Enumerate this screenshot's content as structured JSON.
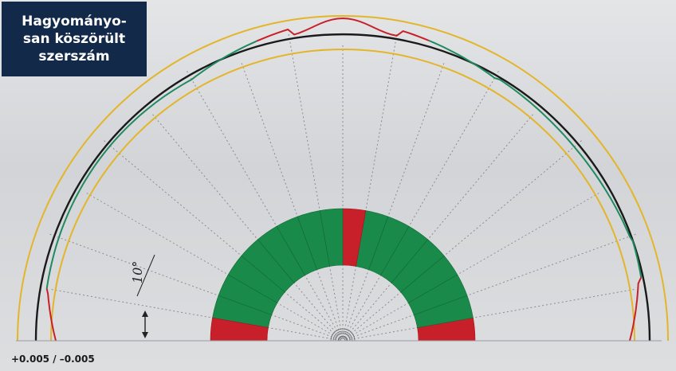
{
  "title": {
    "lines": [
      "Hagyományo-",
      "san köszörült",
      "szerszám"
    ]
  },
  "tolerance_label": "+0.005 / –0.005",
  "angle_label": "10°",
  "colors": {
    "background": "#d8dadc",
    "title_box": "#13294a",
    "tolerance_outer": "#e3b52a",
    "tolerance_inner": "#e3b52a",
    "nominal_profile": "#1a1a1a",
    "measured_profile": "#1f8a5e",
    "out_of_tolerance": "#c8202a",
    "in_tolerance": "#1a8a4a",
    "grid_lines": "#8a8c90"
  },
  "sector_status": [
    "red",
    "green",
    "green",
    "green",
    "green",
    "green",
    "green",
    "green",
    "red",
    "green",
    "green",
    "green",
    "green",
    "green",
    "green",
    "green",
    "green",
    "red"
  ],
  "sector_angle_step_deg": 10
}
